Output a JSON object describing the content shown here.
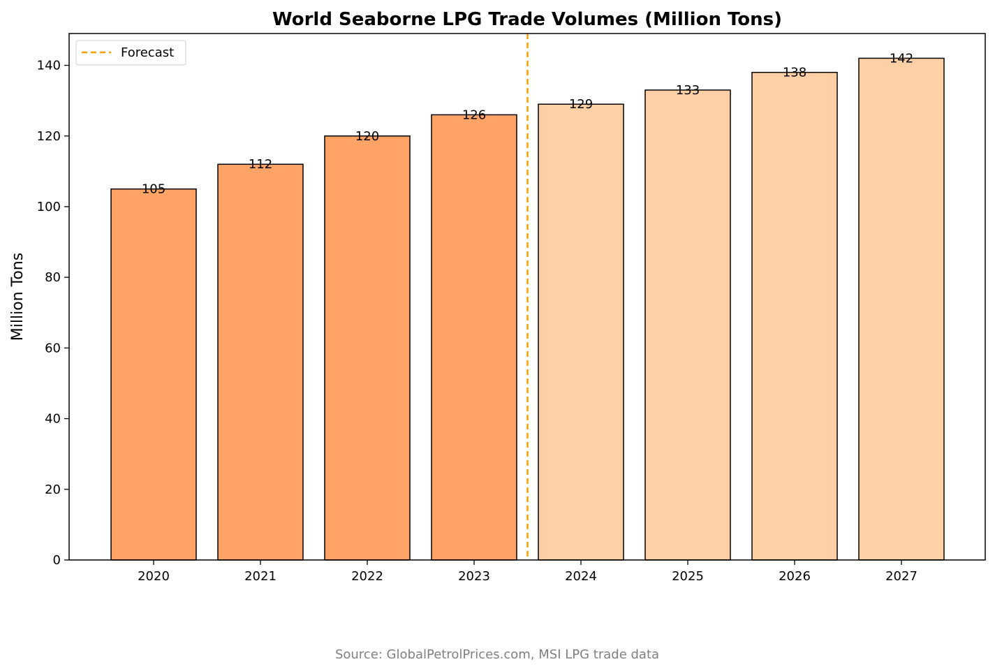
{
  "chart_data": {
    "type": "bar",
    "title": "World Seaborne LPG Trade Volumes (Million Tons)",
    "xlabel": "",
    "ylabel": "Million Tons",
    "categories": [
      "2020",
      "2021",
      "2022",
      "2023",
      "2024",
      "2025",
      "2026",
      "2027"
    ],
    "values": [
      105,
      112,
      120,
      126,
      129,
      133,
      138,
      142
    ],
    "data_labels": [
      "105",
      "112",
      "120",
      "126",
      "129",
      "133",
      "138",
      "142"
    ],
    "forecast_flags": [
      false,
      false,
      false,
      false,
      true,
      true,
      true,
      true
    ],
    "ylim": [
      0,
      149
    ],
    "yticks": [
      0,
      20,
      40,
      60,
      80,
      100,
      120,
      140
    ],
    "ytick_labels": [
      "0",
      "20",
      "40",
      "60",
      "80",
      "100",
      "120",
      "140"
    ],
    "grid": false,
    "legend": {
      "placement": "top-left",
      "entries": [
        {
          "label": "Forecast",
          "style": "dashed-line"
        }
      ]
    },
    "forecast_divider": {
      "between": [
        "2023",
        "2024"
      ]
    },
    "colors": {
      "actual_bar": "#ffa366",
      "forecast_bar": "#ffd0a6",
      "bar_edge": "#000000",
      "forecast_line": "#f5a000"
    },
    "source": "Source: GlobalPetrolPrices.com, MSI LPG trade data"
  }
}
